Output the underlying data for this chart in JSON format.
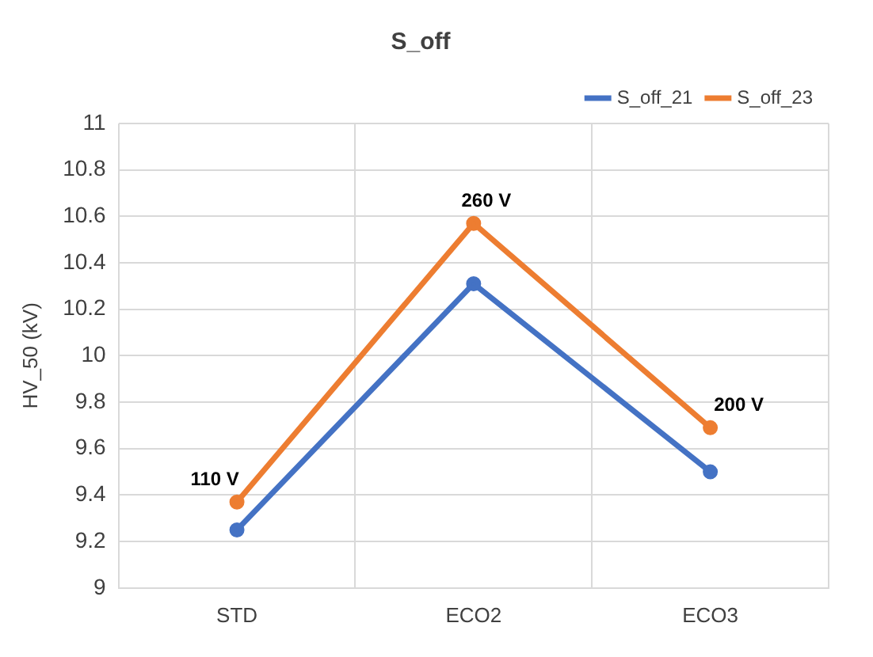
{
  "chart_data": {
    "type": "line",
    "title": "S_off",
    "ylabel": "HV_50 (kV)",
    "categories": [
      "STD",
      "ECO2",
      "ECO3"
    ],
    "series": [
      {
        "name": "S_off_21",
        "color": "#4472c4",
        "values": [
          9.25,
          10.31,
          9.5
        ]
      },
      {
        "name": "S_off_23",
        "color": "#ed7d31",
        "values": [
          9.37,
          10.57,
          9.69
        ]
      }
    ],
    "ylim": [
      9,
      11
    ],
    "yticks": [
      9,
      9.2,
      9.4,
      9.6,
      9.8,
      10,
      10.2,
      10.4,
      10.6,
      10.8,
      11
    ],
    "annotations": [
      {
        "text": "110 V",
        "x": "STD",
        "y": 9.37
      },
      {
        "text": "260 V",
        "x": "ECO2",
        "y": 10.57
      },
      {
        "text": "200 V",
        "x": "ECO3",
        "y": 9.69
      }
    ],
    "grid": true,
    "legend": "top right",
    "marker": "circle",
    "line_style": "solid"
  }
}
